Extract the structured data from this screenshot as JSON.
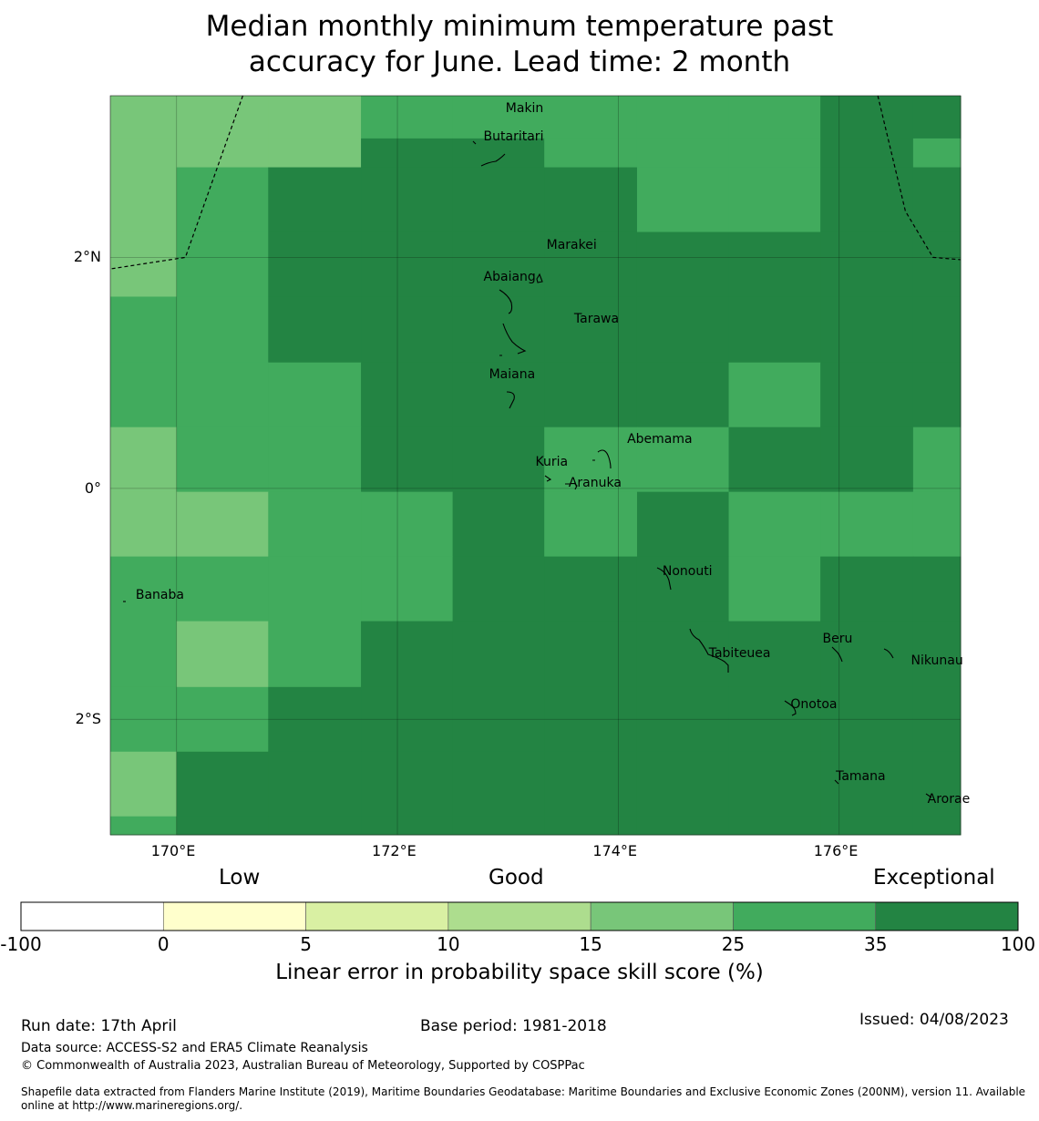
{
  "title_line1": "Median monthly minimum temperature past",
  "title_line2": "accuracy for June. Lead time: 2 month",
  "map": {
    "lon_range": [
      169.4,
      177.1
    ],
    "lat_range": [
      -3.0,
      3.4
    ],
    "lon_ticks": [
      {
        "value": 170,
        "label": "170°E"
      },
      {
        "value": 172,
        "label": "172°E"
      },
      {
        "value": 174,
        "label": "174°E"
      },
      {
        "value": 176,
        "label": "176°E"
      }
    ],
    "lat_ticks": [
      {
        "value": 2,
        "label": "2°N"
      },
      {
        "value": 0,
        "label": "0°"
      },
      {
        "value": -2,
        "label": "2°S"
      }
    ],
    "grid": true,
    "cell_lons": [
      169.4,
      170.0,
      170.83,
      171.67,
      172.5,
      173.33,
      174.17,
      175.0,
      175.83,
      176.67,
      177.1
    ],
    "cell_lats": [
      3.4,
      3.03,
      2.78,
      2.22,
      1.66,
      1.09,
      0.53,
      -0.03,
      -0.59,
      -1.15,
      -1.72,
      -2.28,
      -2.84,
      -3.0
    ],
    "skill_rows": [
      [
        4,
        4,
        4,
        5,
        5,
        5,
        5,
        5,
        6,
        6
      ],
      [
        4,
        4,
        4,
        6,
        6,
        5,
        5,
        5,
        6,
        5
      ],
      [
        4,
        5,
        6,
        6,
        6,
        6,
        5,
        5,
        6,
        6
      ],
      [
        4,
        5,
        6,
        6,
        6,
        6,
        6,
        6,
        6,
        6
      ],
      [
        5,
        5,
        6,
        6,
        6,
        6,
        6,
        6,
        6,
        6
      ],
      [
        5,
        5,
        5,
        6,
        6,
        6,
        6,
        5,
        6,
        6
      ],
      [
        4,
        5,
        5,
        6,
        6,
        5,
        5,
        6,
        6,
        5
      ],
      [
        4,
        4,
        5,
        5,
        6,
        5,
        6,
        5,
        5,
        5
      ],
      [
        5,
        5,
        5,
        5,
        6,
        6,
        6,
        5,
        6,
        6
      ],
      [
        5,
        4,
        5,
        6,
        6,
        6,
        6,
        6,
        6,
        6
      ],
      [
        5,
        5,
        6,
        6,
        6,
        6,
        6,
        6,
        6,
        6
      ],
      [
        4,
        6,
        6,
        6,
        6,
        6,
        6,
        6,
        6,
        6
      ],
      [
        5,
        6,
        6,
        6,
        6,
        6,
        6,
        6,
        6,
        6
      ]
    ],
    "eez_boundary_west": [
      [
        170.6,
        3.4
      ],
      [
        170.08,
        2.0
      ],
      [
        169.4,
        1.9
      ]
    ],
    "eez_boundary_east": [
      [
        176.35,
        3.4
      ],
      [
        176.6,
        2.4
      ],
      [
        176.85,
        2.0
      ],
      [
        177.1,
        1.98
      ]
    ],
    "islands": [
      {
        "name": "Makin",
        "lon": 172.98,
        "lat": 3.28
      },
      {
        "name": "Butaritari",
        "lon": 172.78,
        "lat": 3.04
      },
      {
        "name": "Marakei",
        "lon": 173.35,
        "lat": 2.1
      },
      {
        "name": "Abaiang",
        "lon": 172.78,
        "lat": 1.82
      },
      {
        "name": "Tarawa",
        "lon": 173.6,
        "lat": 1.46
      },
      {
        "name": "Maiana",
        "lon": 172.83,
        "lat": 0.98
      },
      {
        "name": "Abemama",
        "lon": 174.08,
        "lat": 0.42
      },
      {
        "name": "Kuria",
        "lon": 173.25,
        "lat": 0.22
      },
      {
        "name": "Aranuka",
        "lon": 173.55,
        "lat": 0.04
      },
      {
        "name": "Nonouti",
        "lon": 174.4,
        "lat": -0.73
      },
      {
        "name": "Banaba",
        "lon": 169.63,
        "lat": -0.93
      },
      {
        "name": "Beru",
        "lon": 175.85,
        "lat": -1.31
      },
      {
        "name": "Tabiteuea",
        "lon": 174.82,
        "lat": -1.44
      },
      {
        "name": "Nikunau",
        "lon": 176.65,
        "lat": -1.5
      },
      {
        "name": "Onotoa",
        "lon": 175.56,
        "lat": -1.88
      },
      {
        "name": "Tamana",
        "lon": 175.97,
        "lat": -2.5
      },
      {
        "name": "Arorae",
        "lon": 176.8,
        "lat": -2.7
      }
    ]
  },
  "colorbar": {
    "boundaries": [
      "-100",
      "0",
      "5",
      "10",
      "15",
      "25",
      "35",
      "100"
    ],
    "colors": [
      "#ffffff",
      "#ffffcc",
      "#d9f0a3",
      "#addd8e",
      "#78c679",
      "#41ab5d",
      "#238443"
    ],
    "categories": [
      "Low",
      "Good",
      "Exceptional"
    ],
    "title": "Linear error in probability space skill score (%)"
  },
  "footer": {
    "run_date": "Run date: 17th April",
    "base_period": "Base period: 1981-2018",
    "issued": "Issued: 04/08/2023",
    "data_source": "Data source: ACCESS-S2 and ERA5 Climate Reanalysis",
    "copyright": "© Commonwealth of Australia 2023, Australian Bureau of Meteorology, Supported by COSPPac",
    "shapefile_line1": "Shapefile data extracted from Flanders Marine Institute (2019), Maritime Boundaries Geodatabase: Maritime Boundaries and Exclusive Economic Zones (200NM), version 11. Available",
    "shapefile_line2": "online at http://www.marineregions.org/."
  }
}
